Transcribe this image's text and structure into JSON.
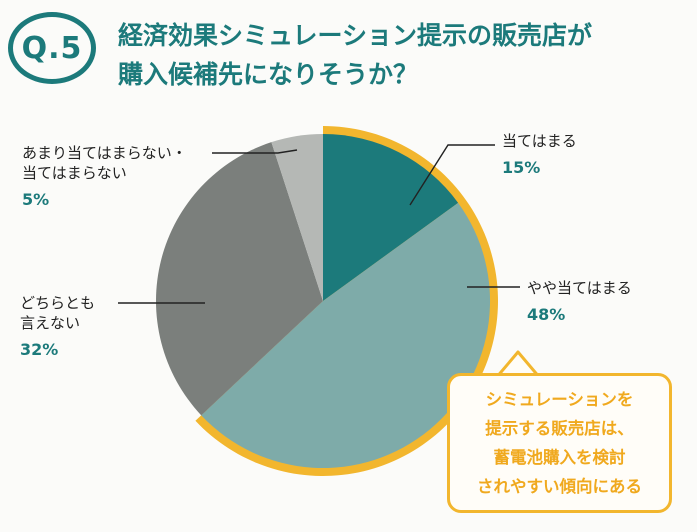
{
  "header": {
    "badge": "Q.5",
    "title_lines": [
      "経済効果シミュレーション提示の販売店が",
      "購入候補先になりそうか？"
    ]
  },
  "callout": {
    "lines": [
      "シミュレーションを",
      "提示する販売店は、",
      "蓄電池購入を検討",
      "されやすい傾向にある"
    ]
  },
  "chart_data": {
    "type": "pie",
    "title": "",
    "start": "12 o'clock",
    "direction": "clockwise",
    "slices": [
      {
        "label_lines": [
          "当てはまる"
        ],
        "value": 15,
        "value_label": "15%",
        "color": "#1c7a7b"
      },
      {
        "label_lines": [
          "やや当てはまる"
        ],
        "value": 48,
        "value_label": "48%",
        "color": "#7eaba9"
      },
      {
        "label_lines": [
          "どちらとも",
          "言えない"
        ],
        "value": 32,
        "value_label": "32%",
        "color": "#7b7f7c"
      },
      {
        "label_lines": [
          "あまり当てはまらない・",
          "当てはまらない"
        ],
        "value": 5,
        "value_label": "5%",
        "color": "#b5b8b5"
      }
    ],
    "highlight_color": "#f2b62e"
  }
}
